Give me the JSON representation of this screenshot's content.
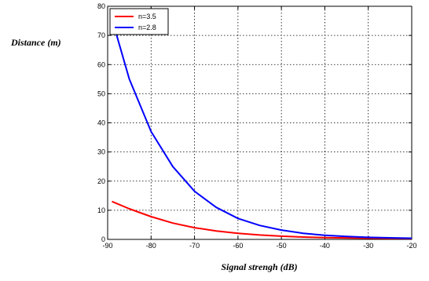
{
  "chart_data": {
    "type": "line",
    "title": "",
    "xlabel": "Signal strengh (dB)",
    "ylabel": "Distance (m)",
    "xlim": [
      -90,
      -20
    ],
    "ylim": [
      0,
      80
    ],
    "xticks": [
      "-90",
      "-80",
      "-70",
      "-60",
      "-50",
      "-40",
      "-30",
      "-20"
    ],
    "yticks": [
      "0",
      "10",
      "20",
      "30",
      "40",
      "50",
      "60",
      "70",
      "80"
    ],
    "grid": true,
    "legend_position": "top-left",
    "series": [
      {
        "name": "n=3.5",
        "color": "#ff0000",
        "x": [
          -89,
          -85,
          -80,
          -75,
          -70,
          -65,
          -60,
          -55,
          -50,
          -45,
          -40,
          -35,
          -30,
          -25,
          -20
        ],
        "y": [
          13,
          10.5,
          7.8,
          5.6,
          4.0,
          2.9,
          2.1,
          1.5,
          1.1,
          0.8,
          0.6,
          0.5,
          0.4,
          0.35,
          0.3
        ]
      },
      {
        "name": "n=2.8",
        "color": "#0000ff",
        "x": [
          -88.3,
          -85,
          -80,
          -75,
          -70,
          -65,
          -60,
          -55,
          -50,
          -45,
          -40,
          -35,
          -30,
          -25,
          -20
        ],
        "y": [
          72,
          55,
          37,
          25,
          16.5,
          11,
          7.2,
          4.8,
          3.2,
          2.1,
          1.4,
          1.0,
          0.7,
          0.55,
          0.4
        ]
      }
    ]
  }
}
